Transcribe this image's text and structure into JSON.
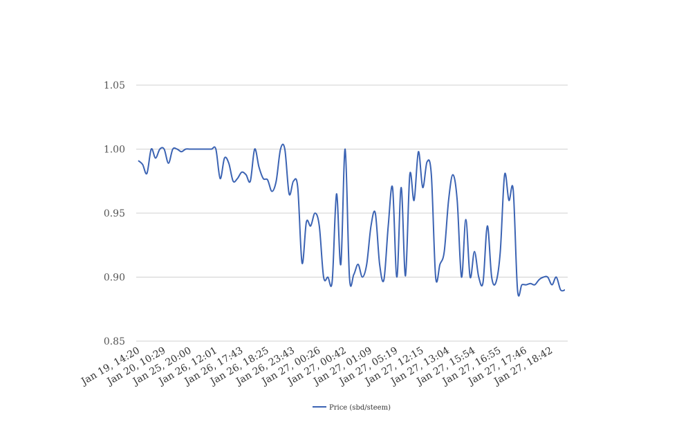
{
  "chart_data": {
    "type": "line",
    "title": "",
    "xlabel": "",
    "ylabel": "",
    "ylim": [
      0.85,
      1.05
    ],
    "yticks": [
      "0.85",
      "0.90",
      "0.95",
      "1.00",
      "1.05"
    ],
    "ytick_values": [
      0.85,
      0.9,
      0.95,
      1.0,
      1.05
    ],
    "x_tick_labels": [
      "Jan 19, 14:20",
      "Jan 20, 10:29",
      "Jan 25, 20:00",
      "Jan 26, 12:01",
      "Jan 26, 17:43",
      "Jan 26, 18:25",
      "Jan 26, 23:43",
      "Jan 27, 00:26",
      "Jan 27, 00:42",
      "Jan 27, 01:09",
      "Jan 27, 05:19",
      "Jan 27, 12:15",
      "Jan 27, 13:04",
      "Jan 27, 15:54",
      "Jan 27, 16:55",
      "Jan 27, 17:46",
      "Jan 27, 18:42"
    ],
    "grid": true,
    "legend_position": "bottom-center",
    "colors": {
      "series": "#3b63b3",
      "grid": "#d0d0d0"
    },
    "series": [
      {
        "name": "Price (sbd/steem)",
        "values": [
          0.991,
          0.988,
          0.981,
          1.0,
          0.993,
          1.0,
          1.0,
          0.989,
          1.0,
          1.0,
          0.998,
          1.0,
          1.0,
          1.0,
          1.0,
          1.0,
          1.0,
          1.0,
          1.0,
          0.977,
          0.993,
          0.989,
          0.975,
          0.977,
          0.982,
          0.98,
          0.975,
          1.0,
          0.986,
          0.977,
          0.976,
          0.967,
          0.975,
          1.0,
          1.0,
          0.965,
          0.975,
          0.97,
          0.911,
          0.943,
          0.94,
          0.95,
          0.94,
          0.9,
          0.9,
          0.897,
          0.965,
          0.91,
          1.0,
          0.9,
          0.902,
          0.91,
          0.9,
          0.91,
          0.94,
          0.95,
          0.91,
          0.898,
          0.94,
          0.97,
          0.9,
          0.97,
          0.901,
          0.98,
          0.96,
          0.998,
          0.97,
          0.99,
          0.98,
          0.9,
          0.91,
          0.92,
          0.96,
          0.98,
          0.96,
          0.9,
          0.945,
          0.9,
          0.92,
          0.9,
          0.896,
          0.94,
          0.9,
          0.896,
          0.92,
          0.98,
          0.96,
          0.968,
          0.89,
          0.894,
          0.894,
          0.895,
          0.894,
          0.898,
          0.9,
          0.9,
          0.894,
          0.9,
          0.89,
          0.89
        ]
      }
    ]
  }
}
